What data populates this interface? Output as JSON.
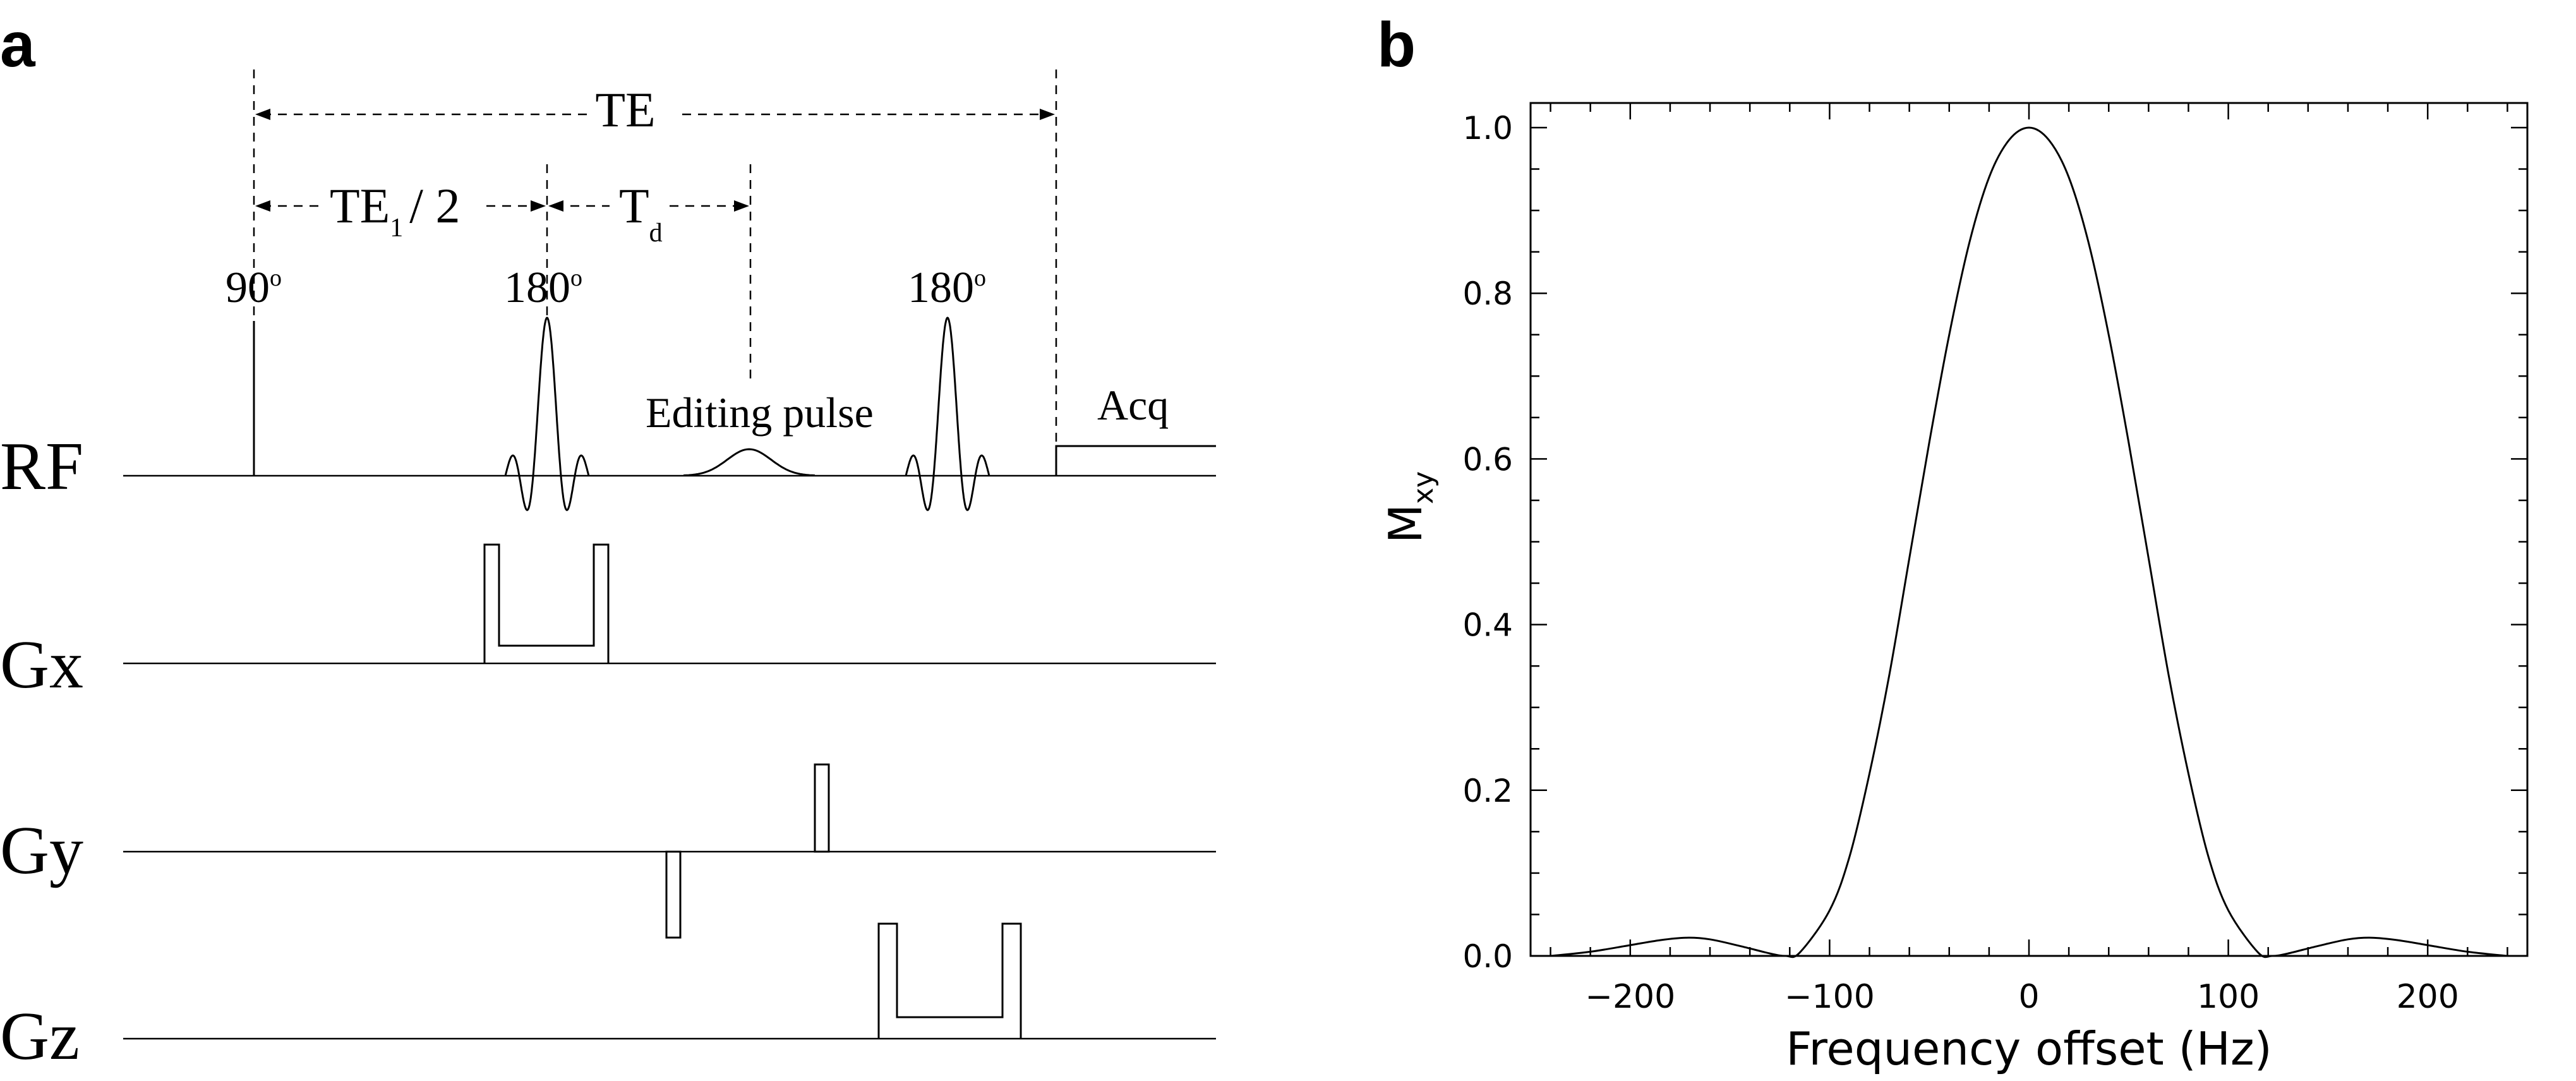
{
  "panel_a": {
    "label": "a",
    "timing": {
      "te": "TE",
      "te1_half": {
        "main": "TE",
        "sub": "1",
        "rest": "/ 2"
      },
      "td": {
        "main": "T",
        "sub": "d"
      }
    },
    "pulses": {
      "p90": {
        "value": "90",
        "sup": "o"
      },
      "p180a": {
        "value": "180",
        "sup": "o"
      },
      "p180b": {
        "value": "180",
        "sup": "o"
      },
      "editing": "Editing pulse",
      "acq": "Acq"
    },
    "channels": [
      "RF",
      "Gx",
      "Gy",
      "Gz"
    ]
  },
  "panel_b": {
    "label": "b",
    "chart_data": {
      "type": "line",
      "xlabel": "Frequency offset (Hz)",
      "ylabel": {
        "main": "M",
        "sub": "xy"
      },
      "xlim": [
        -250,
        250
      ],
      "ylim": [
        0,
        1.0
      ],
      "xticks": [
        -200,
        -100,
        0,
        100,
        200
      ],
      "xtick_labels": [
        "−200",
        "−100",
        "0",
        "100",
        "200"
      ],
      "yticks": [
        0.0,
        0.2,
        0.4,
        0.6,
        0.8,
        1.0
      ],
      "ytick_labels": [
        "0.0",
        "0.2",
        "0.4",
        "0.6",
        "0.8",
        "1.0"
      ],
      "grid": false,
      "series": [
        {
          "x": [
            -240,
            -220,
            -200,
            -185,
            -172,
            -160,
            -145,
            -130,
            -122,
            -115,
            -100,
            -90,
            -80,
            -70,
            -60,
            -50,
            -40,
            -30,
            -20,
            -10,
            0,
            10,
            20,
            30,
            40,
            50,
            60,
            70,
            80,
            90,
            100,
            115,
            122,
            130,
            145,
            160,
            172,
            185,
            200,
            220,
            240
          ],
          "y": [
            0.0,
            0.005,
            0.013,
            0.019,
            0.022,
            0.02,
            0.012,
            0.003,
            0.0,
            0.004,
            0.055,
            0.12,
            0.22,
            0.34,
            0.48,
            0.62,
            0.75,
            0.86,
            0.94,
            0.985,
            1.0,
            0.985,
            0.94,
            0.86,
            0.75,
            0.62,
            0.48,
            0.34,
            0.22,
            0.12,
            0.055,
            0.004,
            0.0,
            0.003,
            0.012,
            0.02,
            0.022,
            0.019,
            0.013,
            0.005,
            0.0
          ]
        }
      ]
    }
  }
}
